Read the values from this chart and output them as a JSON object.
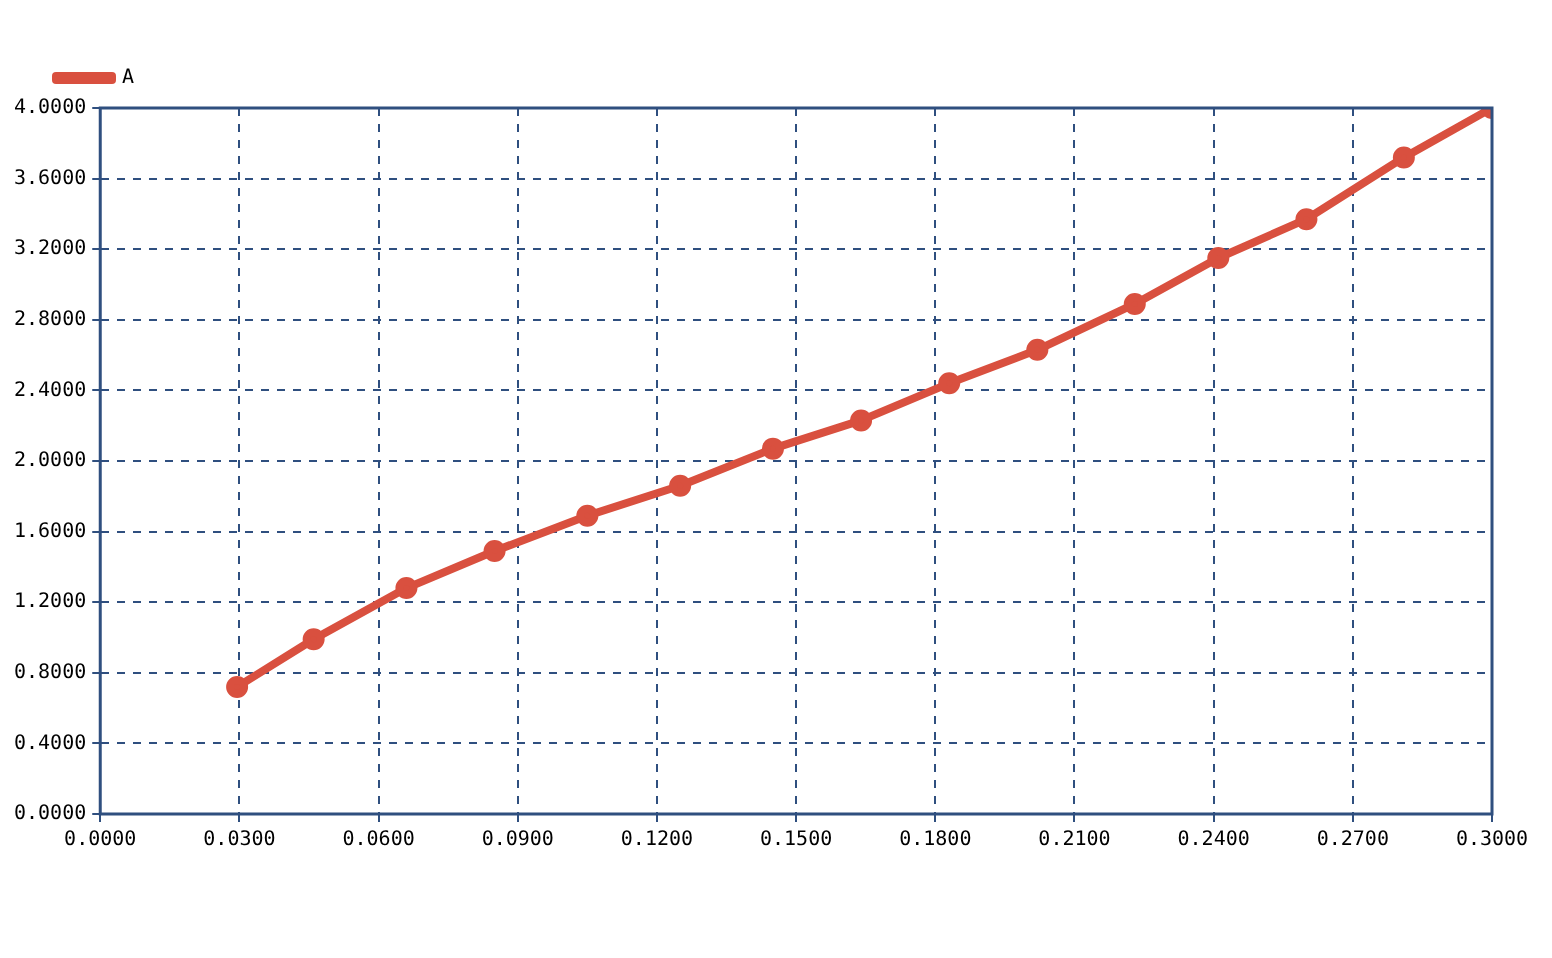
{
  "chart_data": {
    "type": "line",
    "x": [
      0.0295,
      0.046,
      0.066,
      0.085,
      0.105,
      0.125,
      0.145,
      0.164,
      0.183,
      0.202,
      0.223,
      0.241,
      0.26,
      0.281,
      0.3
    ],
    "series": [
      {
        "name": "A",
        "color": "#d9503f",
        "values": [
          0.72,
          0.99,
          1.28,
          1.49,
          1.69,
          1.86,
          2.07,
          2.23,
          2.44,
          2.63,
          2.89,
          3.15,
          3.37,
          3.72,
          4.0
        ]
      }
    ],
    "xlim": [
      0,
      0.3
    ],
    "xticks": [
      {
        "value": 0,
        "label": "0.0000"
      },
      {
        "value": 0.03,
        "label": "0.0300"
      },
      {
        "value": 0.06,
        "label": "0.0600"
      },
      {
        "value": 0.09,
        "label": "0.0900"
      },
      {
        "value": 0.12,
        "label": "0.1200"
      },
      {
        "value": 0.15,
        "label": "0.1500"
      },
      {
        "value": 0.18,
        "label": "0.1800"
      },
      {
        "value": 0.21,
        "label": "0.2100"
      },
      {
        "value": 0.24,
        "label": "0.2400"
      },
      {
        "value": 0.27,
        "label": "0.2700"
      },
      {
        "value": 0.3,
        "label": "0.3000"
      }
    ],
    "ylim": [
      0,
      4
    ],
    "yticks": [
      {
        "value": 0,
        "label": "0.0000"
      },
      {
        "value": 0.4,
        "label": "0.4000"
      },
      {
        "value": 0.8,
        "label": "0.8000"
      },
      {
        "value": 1.2,
        "label": "1.2000"
      },
      {
        "value": 1.6,
        "label": "1.6000"
      },
      {
        "value": 2,
        "label": "2.0000"
      },
      {
        "value": 2.4,
        "label": "2.4000"
      },
      {
        "value": 2.8,
        "label": "2.8000"
      },
      {
        "value": 3.2,
        "label": "3.2000"
      },
      {
        "value": 3.6,
        "label": "3.6000"
      },
      {
        "value": 4,
        "label": "4.0000"
      }
    ],
    "grid": true,
    "legend": "top left",
    "marker": "circle",
    "line_style": "solid"
  }
}
